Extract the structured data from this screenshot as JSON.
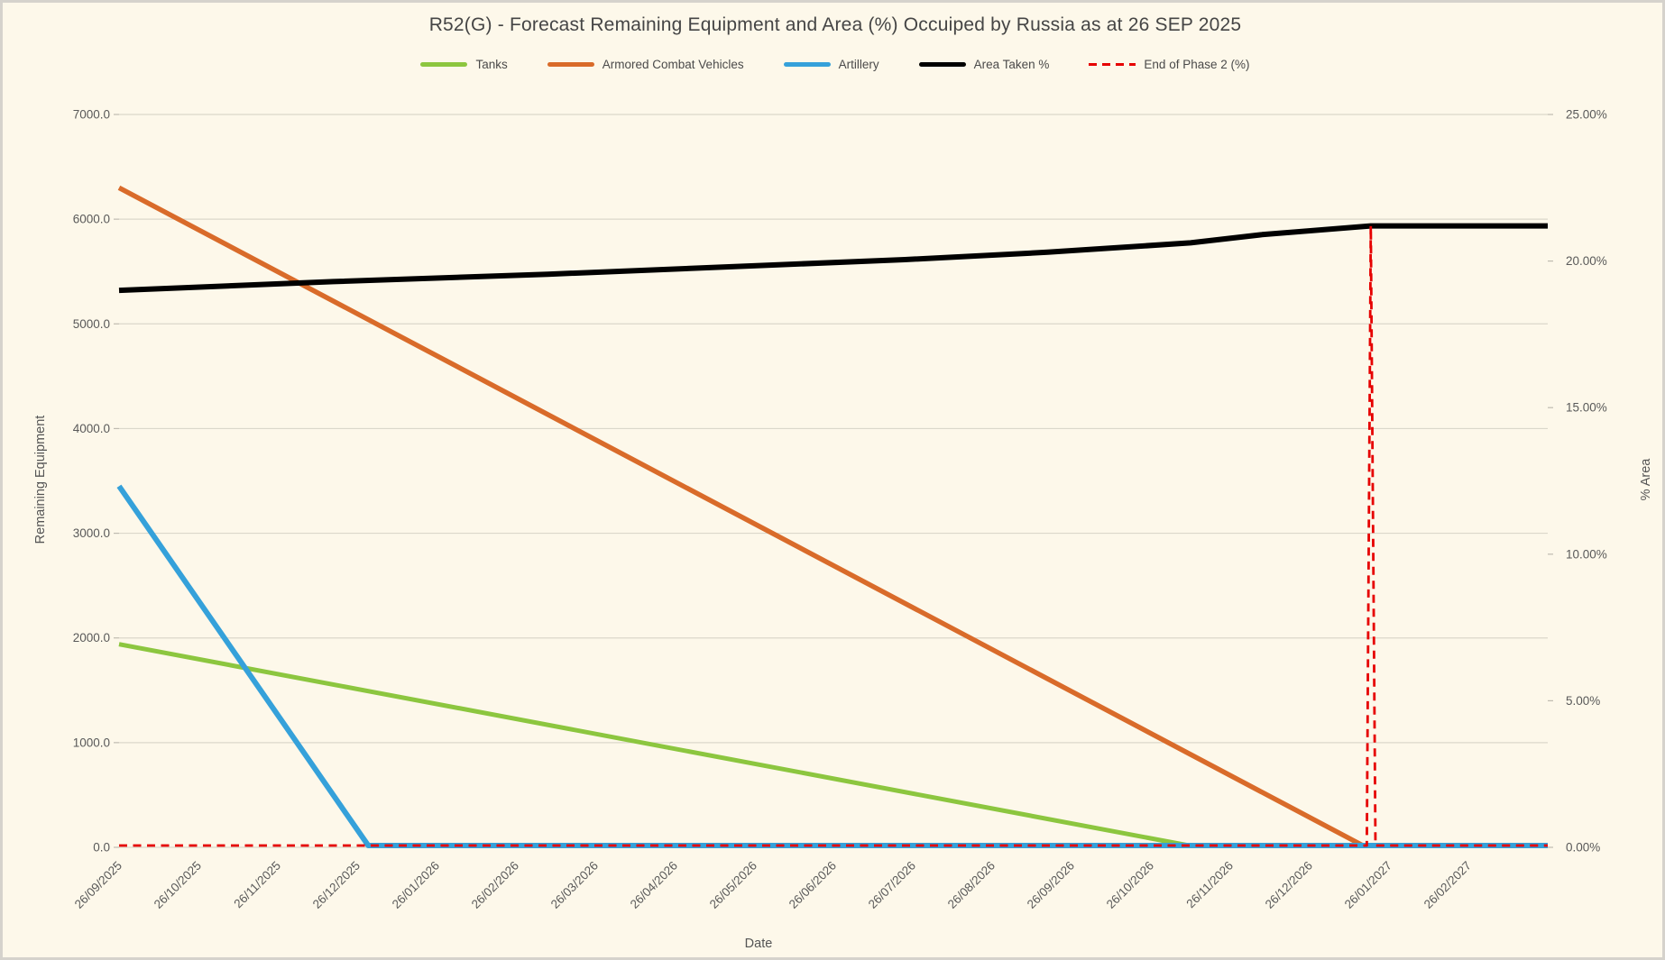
{
  "page": {
    "background_color": "#fdf8ea",
    "border_color": "#d5d2cc",
    "text_color": "#555555",
    "gridline_color": "#dbd7cb",
    "tickmark_color": "#bfbbb0"
  },
  "chart_data": {
    "type": "line",
    "title": "R52(G) - Forecast Remaining Equipment and Area (%) Occuiped by Russia as at 26 SEP 2025",
    "xlabel": "Date",
    "ylabel_left": "Remaining Equipment",
    "ylabel_right": "% Area",
    "grid": "horizontal-only",
    "legend_position": "top-center",
    "x_axis": {
      "unit": "months-since-26/09/2025",
      "total_months_span": 18,
      "tick_labels": [
        "26/09/2025",
        "26/10/2025",
        "26/11/2025",
        "26/12/2025",
        "26/01/2026",
        "26/02/2026",
        "26/03/2026",
        "26/04/2026",
        "26/05/2026",
        "26/06/2026",
        "26/07/2026",
        "26/08/2026",
        "26/09/2026",
        "26/10/2026",
        "26/11/2026",
        "26/12/2026",
        "26/01/2027",
        "26/02/2027"
      ]
    },
    "y_left": {
      "min": 0,
      "max": 7000,
      "step": 1000,
      "tick_labels": [
        "0.0",
        "1000.0",
        "2000.0",
        "3000.0",
        "4000.0",
        "5000.0",
        "6000.0",
        "7000.0"
      ]
    },
    "y_right": {
      "min": 0,
      "max": 25,
      "step": 5,
      "tick_labels": [
        "0.00%",
        "5.00%",
        "10.00%",
        "15.00%",
        "20.00%",
        "25.00%"
      ]
    },
    "series": [
      {
        "name": "Tanks",
        "axis": "left",
        "color": "#8cc63f",
        "dashed": false,
        "line_width": 5,
        "points": [
          [
            0,
            1940
          ],
          [
            13.48,
            0
          ],
          [
            18,
            0
          ]
        ]
      },
      {
        "name": "Armored Combat Vehicles",
        "axis": "left",
        "color": "#d96b2a",
        "dashed": false,
        "line_width": 5.5,
        "points": [
          [
            0,
            6300
          ],
          [
            15.67,
            0
          ],
          [
            18,
            0
          ]
        ]
      },
      {
        "name": "Artillery",
        "axis": "left",
        "color": "#35a1da",
        "dashed": false,
        "line_width": 6,
        "points": [
          [
            0,
            3450
          ],
          [
            3.14,
            0
          ],
          [
            18,
            0
          ]
        ]
      },
      {
        "name": "Area Taken %",
        "axis": "right",
        "color": "#000000",
        "dashed": false,
        "line_width": 6,
        "points": [
          [
            0,
            19.0
          ],
          [
            2.7,
            19.3
          ],
          [
            5.4,
            19.55
          ],
          [
            8.1,
            19.85
          ],
          [
            9.9,
            20.05
          ],
          [
            11.7,
            20.3
          ],
          [
            13.5,
            20.62
          ],
          [
            14.4,
            20.9
          ],
          [
            15.77,
            21.2
          ],
          [
            18,
            21.2
          ]
        ]
      },
      {
        "name": "End of Phase 2 (%)",
        "axis": "right",
        "color": "#e60000",
        "dashed": true,
        "line_width": 2.8,
        "points": [
          [
            0,
            0
          ],
          [
            15.72,
            0
          ],
          [
            15.77,
            21.2
          ],
          [
            15.83,
            0
          ],
          [
            18,
            0
          ]
        ]
      }
    ]
  }
}
